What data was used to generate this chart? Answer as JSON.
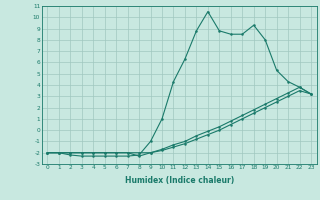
{
  "xlabel": "Humidex (Indice chaleur)",
  "ylabel": "",
  "xlim": [
    -0.5,
    23.5
  ],
  "ylim": [
    -3,
    11
  ],
  "xticks": [
    0,
    1,
    2,
    3,
    4,
    5,
    6,
    7,
    8,
    9,
    10,
    11,
    12,
    13,
    14,
    15,
    16,
    17,
    18,
    19,
    20,
    21,
    22,
    23
  ],
  "yticks": [
    -3,
    -2,
    -1,
    0,
    1,
    2,
    3,
    4,
    5,
    6,
    7,
    8,
    9,
    10,
    11
  ],
  "bg_color": "#c8e8e0",
  "line_color": "#1a7a6a",
  "grid_color": "#a0c8c0",
  "line1_x": [
    0,
    1,
    2,
    3,
    4,
    5,
    6,
    7,
    8,
    9,
    10,
    11,
    12,
    13,
    14,
    15,
    16,
    17,
    18,
    19,
    20,
    21,
    22,
    23
  ],
  "line1_y": [
    -2,
    -2,
    -2.2,
    -2.3,
    -2.3,
    -2.3,
    -2.3,
    -2.3,
    -2.2,
    -1.0,
    1.0,
    4.3,
    6.3,
    8.8,
    10.5,
    8.8,
    8.5,
    8.5,
    9.3,
    8.0,
    5.3,
    4.3,
    3.8,
    3.2
  ],
  "line2_x": [
    0,
    1,
    2,
    3,
    4,
    5,
    6,
    7,
    8,
    9,
    10,
    11,
    12,
    13,
    14,
    15,
    16,
    17,
    18,
    19,
    20,
    21,
    22,
    23
  ],
  "line2_y": [
    -2,
    -2,
    -2,
    -2,
    -2,
    -2,
    -2,
    -2,
    -2,
    -2,
    -1.8,
    -1.5,
    -1.2,
    -0.8,
    -0.4,
    0.0,
    0.5,
    1.0,
    1.5,
    2.0,
    2.5,
    3.0,
    3.5,
    3.2
  ],
  "line3_x": [
    0,
    1,
    2,
    3,
    4,
    5,
    6,
    7,
    8,
    9,
    10,
    11,
    12,
    13,
    14,
    15,
    16,
    17,
    18,
    19,
    20,
    21,
    22,
    23
  ],
  "line3_y": [
    -2,
    -2,
    -2,
    -2,
    -2,
    -2,
    -2,
    -2,
    -2.3,
    -2,
    -1.7,
    -1.3,
    -1.0,
    -0.5,
    -0.1,
    0.3,
    0.8,
    1.3,
    1.8,
    2.3,
    2.8,
    3.3,
    3.8,
    3.2
  ]
}
